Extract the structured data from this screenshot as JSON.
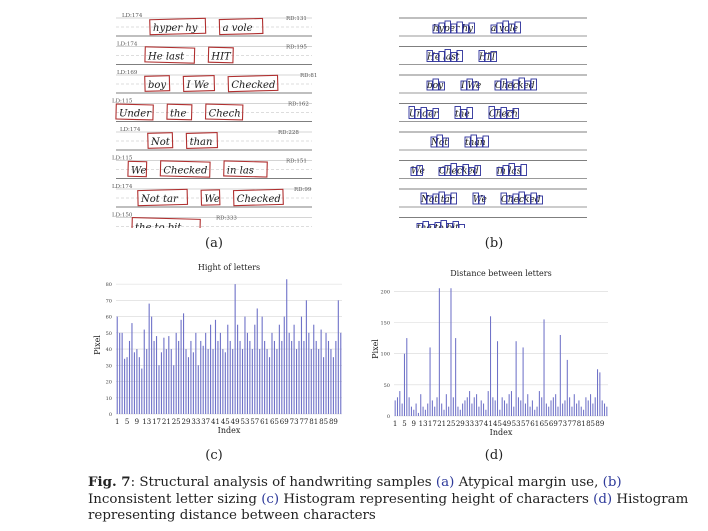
{
  "figure": {
    "fig_label": "Fig. 7",
    "caption": {
      "t1": ": Structural analysis of handwriting samples ",
      "r1": "(a)",
      "t2": " Atypical margin use, ",
      "r2": "(b)",
      "t3": " Inconsistent letter sizing ",
      "r3": "(c)",
      "t4": " Histogram representing height of characters ",
      "r4": "(d)",
      "t5": " Histogram representing distance between characters"
    }
  },
  "panel_labels": {
    "a": "(a)",
    "b": "(b)",
    "c": "(c)",
    "d": "(d)"
  },
  "panel_a": {
    "lines": [
      {
        "words": [
          "hyper hy",
          "a vole"
        ],
        "ld": "LD:174",
        "rd": "RD:131"
      },
      {
        "words": [
          "He last",
          "HIT"
        ],
        "ld": "LD:174",
        "rd": "RD:195"
      },
      {
        "words": [
          "boy",
          "I We",
          "Checked"
        ],
        "ld": "LD:169",
        "rd": "RD:81"
      },
      {
        "words": [
          "Under",
          "the",
          "Chech"
        ],
        "ld": "LD:115",
        "rd": "RD:162"
      },
      {
        "words": [
          "Not",
          "than"
        ],
        "ld": "LD:174",
        "rd": "RD:228"
      },
      {
        "words": [
          "We",
          "Checked",
          "in las"
        ],
        "ld": "LD:115",
        "rd": "RD:151"
      },
      {
        "words": [
          "Not tar",
          "We",
          "Checked"
        ],
        "ld": "LD:174",
        "rd": "RD:99"
      },
      {
        "words": [
          "the to bit"
        ],
        "ld": "LD:150",
        "rd": "RD:333"
      }
    ]
  },
  "colors": {
    "accent_red": "#b03030",
    "accent_blue": "#2b2f9a",
    "bar": "#6f72c8"
  },
  "chart_data": [
    {
      "type": "bar",
      "title": "Hight of letters",
      "xlabel": "Index",
      "ylabel": "Pixel",
      "ylim": [
        0,
        85
      ],
      "yticks": [
        "0",
        "10",
        "20",
        "30",
        "40",
        "50",
        "60",
        "70",
        "80"
      ],
      "xticks": [
        "1",
        "5",
        "9",
        "13",
        "17",
        "21",
        "25",
        "29",
        "33",
        "37",
        "41",
        "45",
        "49",
        "53",
        "57",
        "61",
        "65",
        "69",
        "73",
        "77",
        "81",
        "85",
        "89"
      ],
      "x": [
        1,
        2,
        3,
        4,
        5,
        6,
        7,
        8,
        9,
        10,
        11,
        12,
        13,
        14,
        15,
        16,
        17,
        18,
        19,
        20,
        21,
        22,
        23,
        24,
        25,
        26,
        27,
        28,
        29,
        30,
        31,
        32,
        33,
        34,
        35,
        36,
        37,
        38,
        39,
        40,
        41,
        42,
        43,
        44,
        45,
        46,
        47,
        48,
        49,
        50,
        51,
        52,
        53,
        54,
        55,
        56,
        57,
        58,
        59,
        60,
        61,
        62,
        63,
        64,
        65,
        66,
        67,
        68,
        69,
        70,
        71,
        72,
        73,
        74,
        75,
        76,
        77,
        78,
        79,
        80,
        81,
        82,
        83,
        84,
        85,
        86,
        87,
        88,
        89,
        90,
        91,
        92
      ],
      "values": [
        60,
        50,
        50,
        34,
        35,
        45,
        56,
        38,
        40,
        35,
        28,
        52,
        40,
        68,
        60,
        45,
        48,
        30,
        38,
        47,
        40,
        48,
        40,
        30,
        50,
        45,
        58,
        62,
        40,
        35,
        45,
        38,
        50,
        30,
        45,
        42,
        50,
        40,
        55,
        40,
        58,
        45,
        50,
        40,
        38,
        55,
        45,
        40,
        80,
        55,
        45,
        40,
        60,
        50,
        45,
        40,
        55,
        65,
        40,
        60,
        45,
        40,
        35,
        50,
        45,
        40,
        55,
        45,
        60,
        83,
        50,
        45,
        55,
        40,
        45,
        60,
        45,
        70,
        50,
        40,
        55,
        45,
        40,
        52,
        35,
        50,
        45,
        40,
        35,
        45,
        70,
        50
      ],
      "grid": true
    },
    {
      "type": "bar",
      "title": "Distance between letters",
      "xlabel": "Index",
      "ylabel": "Pixel",
      "ylim": [
        0,
        215
      ],
      "yticks": [
        "0",
        "50",
        "100",
        "150",
        "200"
      ],
      "xticks": [
        "1",
        "5",
        "9",
        "13",
        "17",
        "21",
        "25",
        "29",
        "33",
        "37",
        "41",
        "45",
        "49",
        "53",
        "57",
        "61",
        "65",
        "69",
        "73",
        "77",
        "81",
        "85",
        "89"
      ],
      "x": [
        1,
        2,
        3,
        4,
        5,
        6,
        7,
        8,
        9,
        10,
        11,
        12,
        13,
        14,
        15,
        16,
        17,
        18,
        19,
        20,
        21,
        22,
        23,
        24,
        25,
        26,
        27,
        28,
        29,
        30,
        31,
        32,
        33,
        34,
        35,
        36,
        37,
        38,
        39,
        40,
        41,
        42,
        43,
        44,
        45,
        46,
        47,
        48,
        49,
        50,
        51,
        52,
        53,
        54,
        55,
        56,
        57,
        58,
        59,
        60,
        61,
        62,
        63,
        64,
        65,
        66,
        67,
        68,
        69,
        70,
        71,
        72,
        73,
        74,
        75,
        76,
        77,
        78,
        79,
        80,
        81,
        82,
        83,
        84,
        85,
        86,
        87,
        88,
        89,
        90,
        91,
        92
      ],
      "values": [
        25,
        30,
        40,
        20,
        100,
        125,
        30,
        15,
        10,
        20,
        5,
        35,
        15,
        10,
        20,
        110,
        25,
        15,
        30,
        205,
        20,
        10,
        35,
        15,
        205,
        30,
        125,
        15,
        10,
        20,
        25,
        30,
        40,
        20,
        30,
        35,
        15,
        25,
        20,
        10,
        40,
        160,
        30,
        25,
        120,
        10,
        30,
        25,
        20,
        35,
        40,
        15,
        120,
        30,
        25,
        110,
        20,
        35,
        15,
        25,
        10,
        15,
        40,
        30,
        155,
        20,
        15,
        25,
        30,
        35,
        15,
        130,
        20,
        25,
        90,
        30,
        15,
        35,
        20,
        25,
        15,
        10,
        30,
        25,
        35,
        20,
        30,
        75,
        70,
        25,
        20,
        15
      ],
      "grid": true
    }
  ]
}
